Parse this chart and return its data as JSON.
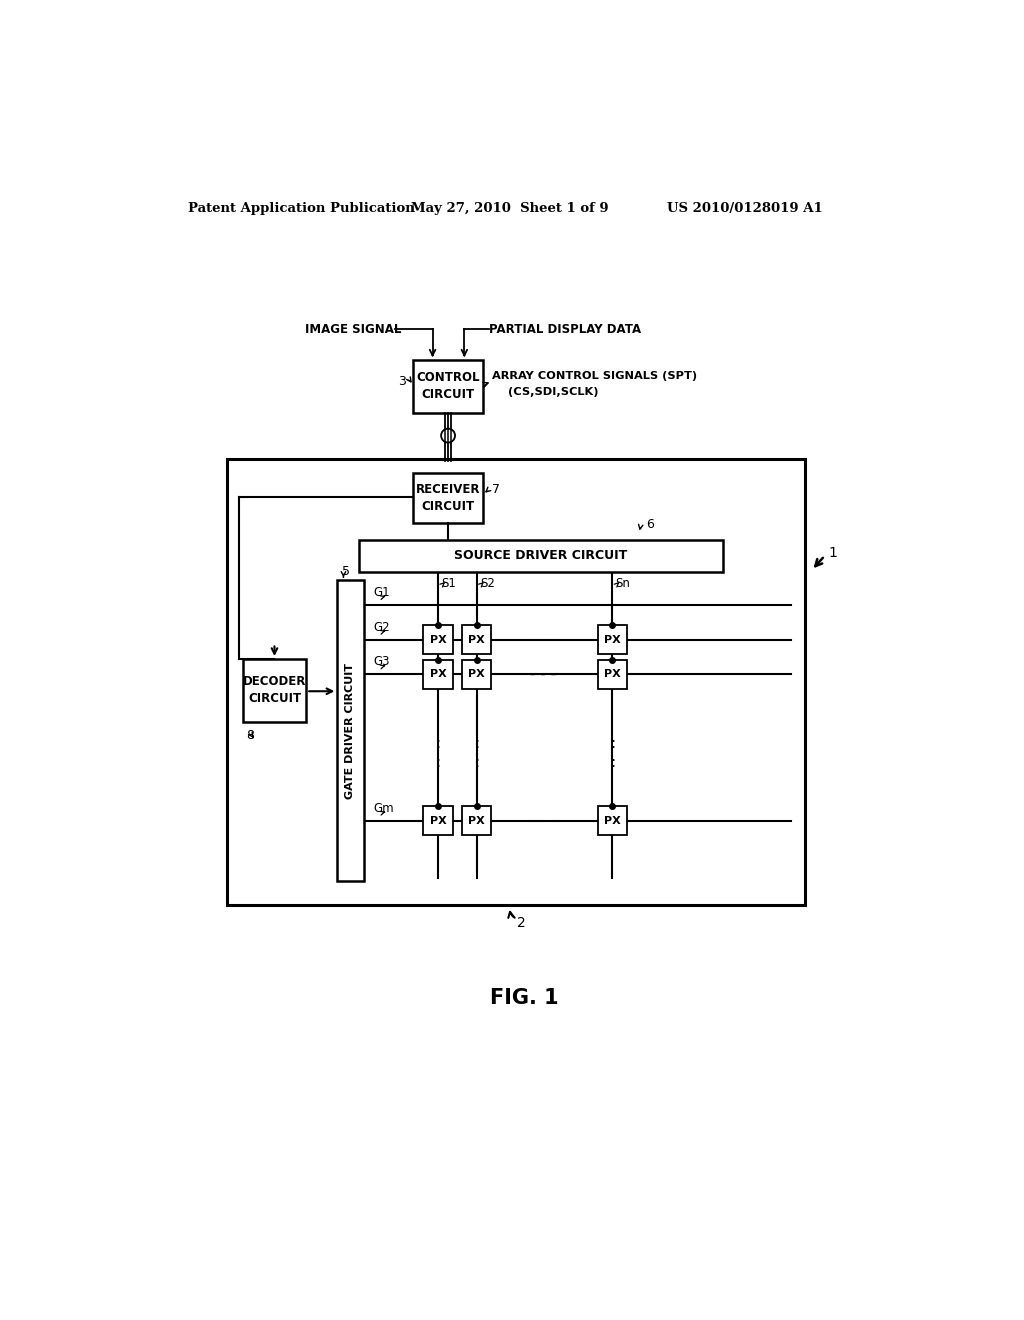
{
  "bg_color": "#ffffff",
  "header_left": "Patent Application Publication",
  "header_mid": "May 27, 2010  Sheet 1 of 9",
  "header_right": "US 2010/0128019 A1",
  "fig_label": "FIG. 1"
}
